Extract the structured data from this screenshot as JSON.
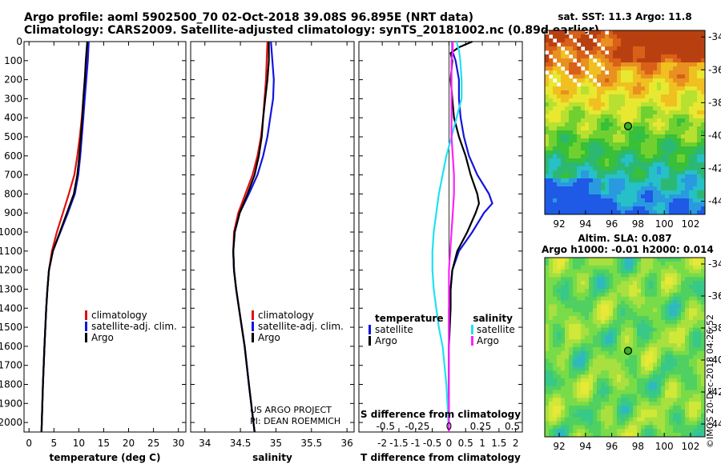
{
  "header": {
    "title_line1": "Argo profile: aoml 5902500_70 02-Oct-2018 39.08S 96.895E (NRT data)",
    "title_line2": "Climatology: CARS2009. Satellite-adjusted climatology: synTS_20181002.nc (0.89d earlier)"
  },
  "colors": {
    "climatology": "#e01010",
    "satellite": "#1414e0",
    "argo": "#000000",
    "sal_satellite": "#22e0f0",
    "sal_argo": "#ff20ff"
  },
  "chart_data": [
    {
      "type": "line",
      "name": "temperature-profile",
      "xlabel": "temperature (deg C)",
      "xlim": [
        -1,
        31.5
      ],
      "xticks": [
        0,
        5,
        10,
        15,
        20,
        25,
        30
      ],
      "ylim": [
        0,
        2050
      ],
      "yticks": [
        0,
        100,
        200,
        300,
        400,
        500,
        600,
        700,
        800,
        900,
        1000,
        1100,
        1200,
        1300,
        1400,
        1500,
        1600,
        1700,
        1800,
        1900,
        2000
      ],
      "ylabels": [
        "0",
        "100",
        "200",
        "300",
        "400",
        "500",
        "600",
        "700",
        "800",
        "900",
        "1000",
        "1100",
        "1200",
        "1300",
        "1400",
        "1500",
        "1600",
        "1700",
        "1800",
        "1900",
        "2000"
      ],
      "legend": [
        "climatology",
        "satellite-adj. clim.",
        "Argo"
      ],
      "series": [
        {
          "name": "climatology",
          "depth": [
            0,
            100,
            200,
            300,
            400,
            500,
            600,
            700,
            800,
            900,
            1000,
            1100,
            1200,
            1300,
            1400,
            1600,
            1800,
            2050
          ],
          "values": [
            11.8,
            11.5,
            11.2,
            10.9,
            10.6,
            10.2,
            9.7,
            9.1,
            8.0,
            6.8,
            5.6,
            4.6,
            4.0,
            3.7,
            3.45,
            3.1,
            2.8,
            2.5
          ]
        },
        {
          "name": "satellite",
          "depth": [
            0,
            100,
            200,
            300,
            400,
            500,
            600,
            700,
            800,
            900,
            1000,
            1100,
            1200,
            1300,
            1400,
            1600,
            1800,
            2050
          ],
          "values": [
            12.0,
            11.8,
            11.5,
            11.2,
            10.9,
            10.6,
            10.3,
            9.9,
            9.2,
            7.8,
            6.3,
            4.8,
            4.0,
            3.7,
            3.45,
            3.1,
            2.8,
            2.5
          ]
        },
        {
          "name": "Argo",
          "depth": [
            0,
            100,
            200,
            300,
            400,
            500,
            600,
            700,
            800,
            900,
            1000,
            1100,
            1200,
            1300,
            1400,
            1600,
            1800,
            2050
          ],
          "values": [
            11.7,
            11.4,
            11.2,
            10.9,
            10.7,
            10.4,
            10.1,
            9.7,
            9.0,
            7.6,
            6.2,
            4.8,
            4.0,
            3.7,
            3.45,
            3.1,
            2.8,
            2.5
          ]
        }
      ]
    },
    {
      "type": "line",
      "name": "salinity-profile",
      "xlabel": "salinity",
      "xlim": [
        33.8,
        36.1
      ],
      "xticks": [
        34,
        34.5,
        35,
        35.5,
        36
      ],
      "xticklabels": [
        "34",
        "34.5",
        "35",
        "35.5",
        "36"
      ],
      "ylim": [
        0,
        2050
      ],
      "legend": [
        "climatology",
        "satellite-adj. clim.",
        "Argo"
      ],
      "series": [
        {
          "name": "climatology",
          "depth": [
            0,
            100,
            200,
            300,
            400,
            500,
            600,
            700,
            800,
            900,
            1000,
            1100,
            1200,
            1300,
            1400,
            1600,
            1800,
            2050
          ],
          "values": [
            34.88,
            34.87,
            34.86,
            34.84,
            34.82,
            34.79,
            34.74,
            34.67,
            34.57,
            34.47,
            34.41,
            34.4,
            34.41,
            34.44,
            34.48,
            34.56,
            34.62,
            34.7
          ]
        },
        {
          "name": "satellite",
          "depth": [
            0,
            100,
            200,
            300,
            400,
            500,
            600,
            700,
            800,
            900,
            1000,
            1100,
            1200,
            1300,
            1400,
            1600,
            1800,
            2050
          ],
          "values": [
            34.93,
            34.95,
            34.97,
            34.96,
            34.92,
            34.88,
            34.82,
            34.74,
            34.62,
            34.49,
            34.42,
            34.4,
            34.41,
            34.44,
            34.48,
            34.56,
            34.62,
            34.7
          ]
        },
        {
          "name": "Argo",
          "depth": [
            0,
            100,
            200,
            300,
            400,
            500,
            600,
            700,
            800,
            900,
            1000,
            1100,
            1200,
            1300,
            1400,
            1600,
            1800,
            2050
          ],
          "values": [
            34.9,
            34.9,
            34.88,
            34.85,
            34.82,
            34.8,
            34.76,
            34.7,
            34.6,
            34.49,
            34.42,
            34.4,
            34.41,
            34.44,
            34.48,
            34.56,
            34.62,
            34.7
          ]
        }
      ],
      "credit": [
        "US ARGO PROJECT",
        "PI: DEAN ROEMMICH"
      ]
    },
    {
      "type": "line",
      "name": "difference-profile",
      "xlabel": "T difference from climatology",
      "xlabel_top": "S difference from climatology",
      "xlim": [
        -2.7,
        2.2
      ],
      "xticks": [
        -2,
        -1.5,
        -1,
        -0.5,
        0,
        0.5,
        1,
        1.5,
        2
      ],
      "xticklabels": [
        "-2",
        "-1.5",
        "-1",
        "-0.5",
        "0",
        "0.5",
        "1",
        "1.5",
        "2"
      ],
      "sticks": [
        -0.5,
        -0.25,
        0,
        0.25,
        0.5
      ],
      "sticklabels": [
        "-0.5",
        "-0.25",
        "0",
        "0.25",
        "0.5"
      ],
      "ylim": [
        0,
        2050
      ],
      "legend_temperature_title": "temperature",
      "legend_salinity_title": "salinity",
      "legend_temperature": [
        "satellite",
        "Argo"
      ],
      "legend_salinity": [
        "satellite",
        "Argo"
      ],
      "series": [
        {
          "name": "T satellite",
          "depth": [
            0,
            50,
            100,
            200,
            300,
            400,
            500,
            600,
            700,
            800,
            850,
            900,
            1000,
            1100,
            1200,
            1300,
            1400,
            1600,
            1800,
            2050
          ],
          "values": [
            0.1,
            0.1,
            0.2,
            0.3,
            0.3,
            0.35,
            0.45,
            0.6,
            0.85,
            1.2,
            1.3,
            1.05,
            0.7,
            0.3,
            0.1,
            0.05,
            0.0,
            0.0,
            0.0,
            0.0
          ]
        },
        {
          "name": "T Argo",
          "depth": [
            0,
            30,
            60,
            100,
            200,
            300,
            400,
            500,
            600,
            700,
            800,
            850,
            900,
            1000,
            1100,
            1200,
            1300,
            1400,
            1600,
            1800,
            2050
          ],
          "values": [
            0.7,
            0.3,
            0.05,
            0.1,
            0.05,
            0.1,
            0.15,
            0.3,
            0.5,
            0.65,
            0.85,
            0.9,
            0.8,
            0.55,
            0.25,
            0.1,
            0.05,
            0.05,
            0.0,
            0.0,
            0.0
          ]
        },
        {
          "name": "S satellite",
          "depth": [
            0,
            50,
            100,
            200,
            300,
            400,
            500,
            600,
            700,
            800,
            900,
            1000,
            1100,
            1200,
            1300,
            1400,
            1500,
            1600,
            1800,
            2050
          ],
          "values": [
            0.06,
            0.08,
            0.09,
            0.1,
            0.1,
            0.06,
            0.02,
            -0.02,
            -0.05,
            -0.08,
            -0.1,
            -0.12,
            -0.13,
            -0.13,
            -0.12,
            -0.1,
            -0.08,
            -0.05,
            -0.02,
            0.0
          ]
        },
        {
          "name": "S Argo",
          "depth": [
            0,
            50,
            100,
            200,
            300,
            400,
            500,
            600,
            700,
            800,
            900,
            1000,
            1100,
            1200,
            1300,
            1400,
            1600,
            1800,
            2050
          ],
          "values": [
            0.03,
            0.03,
            0.02,
            0.02,
            0.02,
            0.02,
            0.02,
            0.03,
            0.04,
            0.04,
            0.03,
            0.02,
            0.01,
            0.0,
            0.0,
            0.0,
            0.0,
            0.0,
            0.0
          ]
        }
      ]
    }
  ],
  "maps": {
    "sst": {
      "title": "sat. SST: 11.3 Argo: 11.8",
      "lat_ticks": [
        "-34",
        "-36",
        "-38",
        "-40",
        "-42",
        "-44"
      ],
      "lon_ticks": [
        "92",
        "94",
        "96",
        "98",
        "100",
        "102"
      ]
    },
    "sla": {
      "title_line1": "Altim. SLA: 0.087",
      "title_line2": "Argo h1000: -0.01 h2000: 0.014",
      "lat_ticks": [
        "-34",
        "-36",
        "-38",
        "-40",
        "-42",
        "-44"
      ],
      "lon_ticks": [
        "92",
        "94",
        "96",
        "98",
        "100",
        "102"
      ]
    }
  },
  "timestamp": "©IMOS 20-Dec-2018 04:26:52"
}
